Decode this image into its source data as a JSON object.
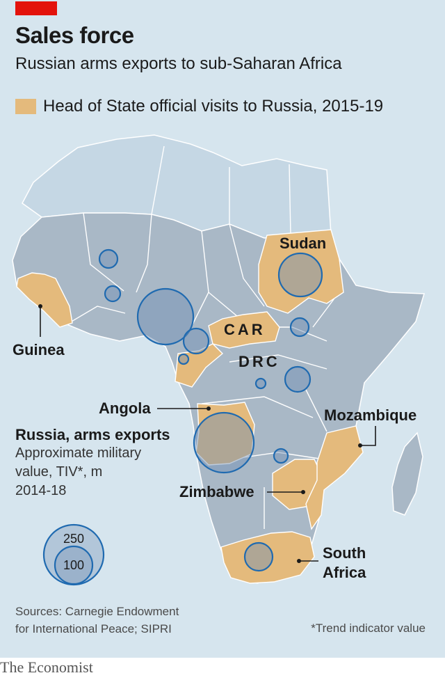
{
  "header": {
    "title": "Sales force",
    "subtitle": "Russian arms exports to sub-Saharan Africa"
  },
  "legend": {
    "label": "Head of State official visits to Russia, 2015-19",
    "color": "#e4ba7c"
  },
  "colors": {
    "ocean": "#d6e5ee",
    "subsaharan_land": "#a9b8c6",
    "north_africa_land": "#c5d7e4",
    "highlighted_country": "#e4ba7c",
    "bubble_fill": "#6f8db3",
    "bubble_stroke": "#1f6ab0",
    "brand_red": "#e3120b"
  },
  "map": {
    "labels": {
      "sudan": "Sudan",
      "car": "CAR",
      "drc": "DRC",
      "guinea": "Guinea",
      "angola": "Angola",
      "mozambique": "Mozambique",
      "zimbabwe": "Zimbabwe",
      "south_africa_line1": "South",
      "south_africa_line2": "Africa"
    },
    "highlighted_countries": [
      "Sudan",
      "CAR",
      "Guinea",
      "Angola",
      "Mozambique",
      "Zimbabwe",
      "South Africa",
      "Congo",
      "Senegal"
    ]
  },
  "bubble_key": {
    "title": "Russia, arms exports",
    "line1": "Approximate military",
    "line2": "value, TIV*, m",
    "line3": "2014-18",
    "large_value": "250",
    "small_value": "100"
  },
  "footer": {
    "sources_line1": "Sources: Carnegie Endowment",
    "sources_line2": "for International Peace; SIPRI",
    "footnote": "*Trend indicator value",
    "brand": "The Economist"
  }
}
